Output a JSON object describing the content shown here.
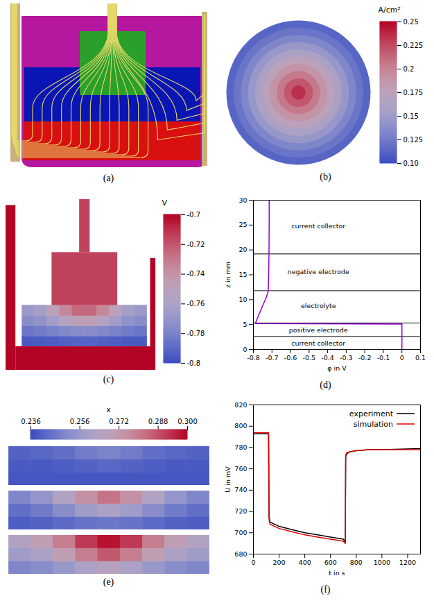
{
  "chart_data": [
    {
      "type": "image",
      "label": "(a)"
    },
    {
      "type": "heatmap",
      "label": "(b)",
      "tick_labels": false,
      "colorbar": {
        "title": "A/cm²",
        "range": [
          0.1,
          0.25
        ],
        "ticks": [
          {
            "value": 0.1,
            "label": "0.10"
          },
          0.125,
          0.15,
          0.175,
          0.2,
          0.225,
          0.25
        ],
        "colors": [
          "#3b4cc0",
          "#dddddd",
          "#b40426"
        ]
      },
      "radial_profile": {
        "r": [
          1,
          0.9,
          0.8,
          0.7,
          0.6,
          0.5,
          0.4,
          0.3,
          0.2,
          0.1,
          0
        ],
        "values": [
          0.113,
          0.122,
          0.133,
          0.146,
          0.16,
          0.175,
          0.19,
          0.205,
          0.22,
          0.235,
          0.248
        ]
      }
    },
    {
      "type": "heatmap",
      "label": "(c)",
      "tick_labels": false,
      "colorbar": {
        "title": "V",
        "range": [
          -0.8,
          -0.7
        ],
        "ticks": [
          -0.7,
          -0.72,
          -0.74,
          -0.76,
          -0.78,
          -0.8
        ],
        "colors": [
          "#3b4cc0",
          "#dddddd",
          "#b40426"
        ]
      },
      "electrolyte": {
        "x": [
          -0.855,
          -0.665,
          -0.475,
          -0.285,
          -0.095,
          0.095,
          0.285,
          0.475,
          0.665,
          0.855
        ],
        "z": [
          0.244,
          0.331,
          0.419,
          0.506
        ],
        "values": [
          [
            -0.795,
            -0.795,
            -0.794,
            -0.793,
            -0.792,
            -0.792,
            -0.793,
            -0.794,
            -0.795,
            -0.795
          ],
          [
            -0.785,
            -0.783,
            -0.78,
            -0.777,
            -0.775,
            -0.775,
            -0.777,
            -0.78,
            -0.783,
            -0.785
          ],
          [
            -0.775,
            -0.772,
            -0.765,
            -0.755,
            -0.748,
            -0.748,
            -0.755,
            -0.765,
            -0.772,
            -0.775
          ],
          [
            -0.768,
            -0.763,
            -0.75,
            -0.735,
            -0.725,
            -0.725,
            -0.735,
            -0.75,
            -0.763,
            -0.768
          ]
        ]
      },
      "electrode_value": -0.715,
      "collector_value": -0.7
    },
    {
      "type": "line",
      "label": "(d)",
      "x_label": "φ in V",
      "y_label": "z in mm",
      "xlim": [
        -0.8,
        0.1
      ],
      "xticks": [
        -0.8,
        -0.7,
        -0.6,
        -0.5,
        -0.4,
        -0.3,
        -0.2,
        -0.1,
        0,
        0.1
      ],
      "ylim": [
        0,
        30
      ],
      "yticks": [
        0,
        5,
        10,
        15,
        20,
        25,
        30
      ],
      "x": [
        0,
        0,
        -0.79,
        -0.77,
        -0.75,
        -0.73,
        -0.72,
        -0.718,
        -0.716,
        -0.715,
        -0.715
      ],
      "series": [
        {
          "color": "#9400d3",
          "values": [
            0,
            5.1,
            5.2,
            7,
            8.8,
            10.5,
            11.7,
            15,
            19.2,
            25,
            30
          ]
        }
      ],
      "boundaries": [
        2.6,
        5.3,
        11.8,
        19.2
      ],
      "annotations": [
        {
          "text": "current collector",
          "x": -0.45,
          "y": 24.8
        },
        {
          "text": "negative electrode",
          "x": -0.45,
          "y": 15.5
        },
        {
          "text": "electrolyte",
          "x": -0.45,
          "y": 8.7
        },
        {
          "text": "positive electrode",
          "x": -0.45,
          "y": 3.9
        },
        {
          "text": "current collector",
          "x": -0.45,
          "y": 1.2
        }
      ]
    },
    {
      "type": "heatmap",
      "label": "(e)",
      "tick_labels": false,
      "colorbar": {
        "title": "x",
        "range": [
          0.236,
          0.3
        ],
        "ticks": [
          0.236,
          0.256,
          0.272,
          0.288,
          {
            "value": 0.3,
            "label": "0.300"
          }
        ],
        "colors": [
          "#3b4cc0",
          "#dddddd",
          "#b40426"
        ]
      },
      "panels": [
        {
          "x": [
            0.056,
            0.167,
            0.278,
            0.389,
            0.5,
            0.611,
            0.722,
            0.833,
            0.944
          ],
          "z": [
            0.167,
            0.5,
            0.833
          ],
          "values": [
            [
              0.238,
              0.238,
              0.238,
              0.238,
              0.238,
              0.238,
              0.238,
              0.238,
              0.238
            ],
            [
              0.239,
              0.239,
              0.24,
              0.241,
              0.242,
              0.241,
              0.24,
              0.239,
              0.239
            ],
            [
              0.241,
              0.242,
              0.244,
              0.247,
              0.249,
              0.247,
              0.244,
              0.242,
              0.241
            ]
          ]
        },
        {
          "x": [
            0.056,
            0.167,
            0.278,
            0.389,
            0.5,
            0.611,
            0.722,
            0.833,
            0.944
          ],
          "z": [
            0.167,
            0.5,
            0.833
          ],
          "values": [
            [
              0.24,
              0.241,
              0.243,
              0.245,
              0.246,
              0.245,
              0.243,
              0.241,
              0.24
            ],
            [
              0.244,
              0.247,
              0.252,
              0.258,
              0.262,
              0.258,
              0.252,
              0.247,
              0.244
            ],
            [
              0.25,
              0.255,
              0.264,
              0.275,
              0.282,
              0.275,
              0.264,
              0.255,
              0.25
            ]
          ]
        },
        {
          "x": [
            0.056,
            0.167,
            0.278,
            0.389,
            0.5,
            0.611,
            0.722,
            0.833,
            0.944
          ],
          "z": [
            0.167,
            0.5,
            0.833
          ],
          "values": [
            [
              0.25,
              0.252,
              0.256,
              0.262,
              0.266,
              0.262,
              0.256,
              0.252,
              0.25
            ],
            [
              0.258,
              0.262,
              0.27,
              0.28,
              0.287,
              0.28,
              0.27,
              0.262,
              0.258
            ],
            [
              0.264,
              0.27,
              0.28,
              0.292,
              0.298,
              0.292,
              0.28,
              0.27,
              0.264
            ]
          ]
        }
      ]
    },
    {
      "type": "line",
      "label": "(f)",
      "x_label": "t in s",
      "y_label": "U in mV",
      "xlim": [
        0,
        1300
      ],
      "xticks": [
        0,
        200,
        400,
        600,
        800,
        1000,
        1200
      ],
      "ylim": [
        680,
        820
      ],
      "yticks": [
        680,
        700,
        720,
        740,
        760,
        780,
        800,
        820
      ],
      "x": [
        0,
        118,
        122,
        130,
        200,
        300,
        400,
        500,
        600,
        700,
        715,
        718,
        725,
        750,
        800,
        900,
        1000,
        1300
      ],
      "series": [
        {
          "name": "experiment",
          "color": "#000000",
          "values": [
            793,
            793,
            715,
            710,
            706,
            703,
            700,
            698,
            696,
            694,
            691,
            771,
            774,
            776,
            777,
            778,
            778,
            779
          ]
        },
        {
          "name": "simulation",
          "color": "#e00000",
          "values": [
            794,
            794,
            712,
            708,
            704,
            701,
            698,
            696,
            694,
            692,
            690,
            773,
            775,
            776,
            777,
            778,
            778,
            778
          ]
        }
      ],
      "legend": "top-right"
    }
  ]
}
